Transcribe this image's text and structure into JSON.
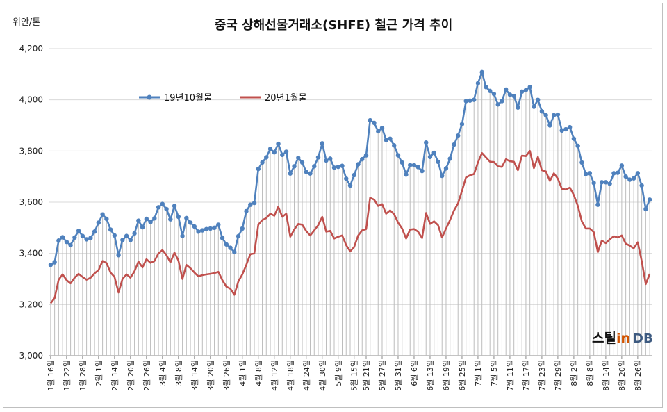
{
  "chart_data": {
    "type": "line",
    "title": "중국 상해선물거래소(SHFE) 철근 가격 추이",
    "unit_label": "위안/톤",
    "y_ticks": [
      "3,000",
      "3,200",
      "3,400",
      "3,600",
      "3,800",
      "4,000",
      "4,200"
    ],
    "ylim": [
      3000,
      4200
    ],
    "x_tick_labels": [
      "1월 16일",
      "1월 22일",
      "1월 28일",
      "2월 1일",
      "2월 14일",
      "2월 20일",
      "2월 26일",
      "3월 4일",
      "3월 8일",
      "3월 14일",
      "3월 20일",
      "3월 26일",
      "4월 1일",
      "4월 8일",
      "4월 12일",
      "4월 18일",
      "4월 24일",
      "4월 30일",
      "5월 9일",
      "5월 15일",
      "5월 21일",
      "5월 27일",
      "5월 31일",
      "6월 6일",
      "6월 13일",
      "6월 19일",
      "6월 25일",
      "7월 1일",
      "7월 5일",
      "7월 11일",
      "7월 17일",
      "7월 23일",
      "7월 29일",
      "8월 2일",
      "8월 8일",
      "8월 14일",
      "8월 20일",
      "8월 26일"
    ],
    "series": [
      {
        "name": "19년10월물",
        "color": "#4f81bd",
        "marker": true,
        "values": [
          3355,
          3365,
          3450,
          3463,
          3445,
          3432,
          3462,
          3488,
          3468,
          3455,
          3460,
          3485,
          3520,
          3552,
          3535,
          3493,
          3470,
          3393,
          3452,
          3468,
          3452,
          3478,
          3528,
          3502,
          3535,
          3522,
          3537,
          3580,
          3593,
          3573,
          3533,
          3585,
          3543,
          3468,
          3538,
          3520,
          3505,
          3485,
          3490,
          3495,
          3497,
          3500,
          3512,
          3460,
          3435,
          3422,
          3405,
          3467,
          3497,
          3565,
          3590,
          3597,
          3730,
          3755,
          3775,
          3808,
          3795,
          3828,
          3785,
          3797,
          3712,
          3740,
          3773,
          3755,
          3718,
          3712,
          3740,
          3775,
          3830,
          3763,
          3770,
          3735,
          3738,
          3742,
          3692,
          3665,
          3706,
          3748,
          3768,
          3783,
          3920,
          3910,
          3877,
          3890,
          3843,
          3848,
          3822,
          3783,
          3755,
          3708,
          3745,
          3745,
          3737,
          3722,
          3833,
          3777,
          3793,
          3758,
          3703,
          3732,
          3770,
          3825,
          3860,
          3905,
          3995,
          3997,
          4000,
          4065,
          4108,
          4050,
          4035,
          4023,
          3982,
          3995,
          4040,
          4020,
          4015,
          3970,
          4032,
          4038,
          4050,
          3973,
          4000,
          3955,
          3940,
          3900,
          3940,
          3942,
          3880,
          3885,
          3893,
          3848,
          3820,
          3755,
          3710,
          3713,
          3675,
          3590,
          3678,
          3678,
          3672,
          3713,
          3715,
          3743,
          3700,
          3688,
          3693,
          3713,
          3665,
          3573,
          3610
        ]
      },
      {
        "name": "20년1월물",
        "color": "#c0504d",
        "marker": false,
        "values": [
          3205,
          3225,
          3297,
          3318,
          3295,
          3283,
          3305,
          3320,
          3308,
          3297,
          3305,
          3322,
          3335,
          3370,
          3362,
          3325,
          3308,
          3247,
          3300,
          3318,
          3305,
          3330,
          3368,
          3345,
          3377,
          3363,
          3370,
          3400,
          3413,
          3393,
          3365,
          3403,
          3372,
          3300,
          3355,
          3342,
          3325,
          3310,
          3315,
          3318,
          3320,
          3323,
          3328,
          3295,
          3270,
          3262,
          3238,
          3290,
          3318,
          3355,
          3397,
          3400,
          3512,
          3530,
          3538,
          3555,
          3547,
          3582,
          3543,
          3555,
          3465,
          3493,
          3515,
          3512,
          3487,
          3470,
          3490,
          3510,
          3543,
          3485,
          3488,
          3458,
          3465,
          3470,
          3432,
          3408,
          3425,
          3470,
          3490,
          3495,
          3617,
          3610,
          3585,
          3592,
          3555,
          3568,
          3553,
          3520,
          3497,
          3458,
          3493,
          3495,
          3485,
          3460,
          3558,
          3515,
          3525,
          3510,
          3462,
          3497,
          3530,
          3568,
          3595,
          3645,
          3697,
          3705,
          3710,
          3755,
          3792,
          3775,
          3758,
          3757,
          3740,
          3738,
          3768,
          3760,
          3758,
          3725,
          3782,
          3780,
          3800,
          3733,
          3777,
          3725,
          3720,
          3683,
          3713,
          3692,
          3652,
          3650,
          3657,
          3628,
          3585,
          3525,
          3497,
          3497,
          3483,
          3405,
          3450,
          3440,
          3455,
          3467,
          3462,
          3470,
          3438,
          3430,
          3420,
          3443,
          3370,
          3280,
          3320
        ]
      }
    ],
    "drop_lines": true,
    "legend_position": "top-left inside plot",
    "grid": true
  },
  "logo": {
    "part1": "스틸",
    "part2": "in",
    "part3": "DB"
  }
}
